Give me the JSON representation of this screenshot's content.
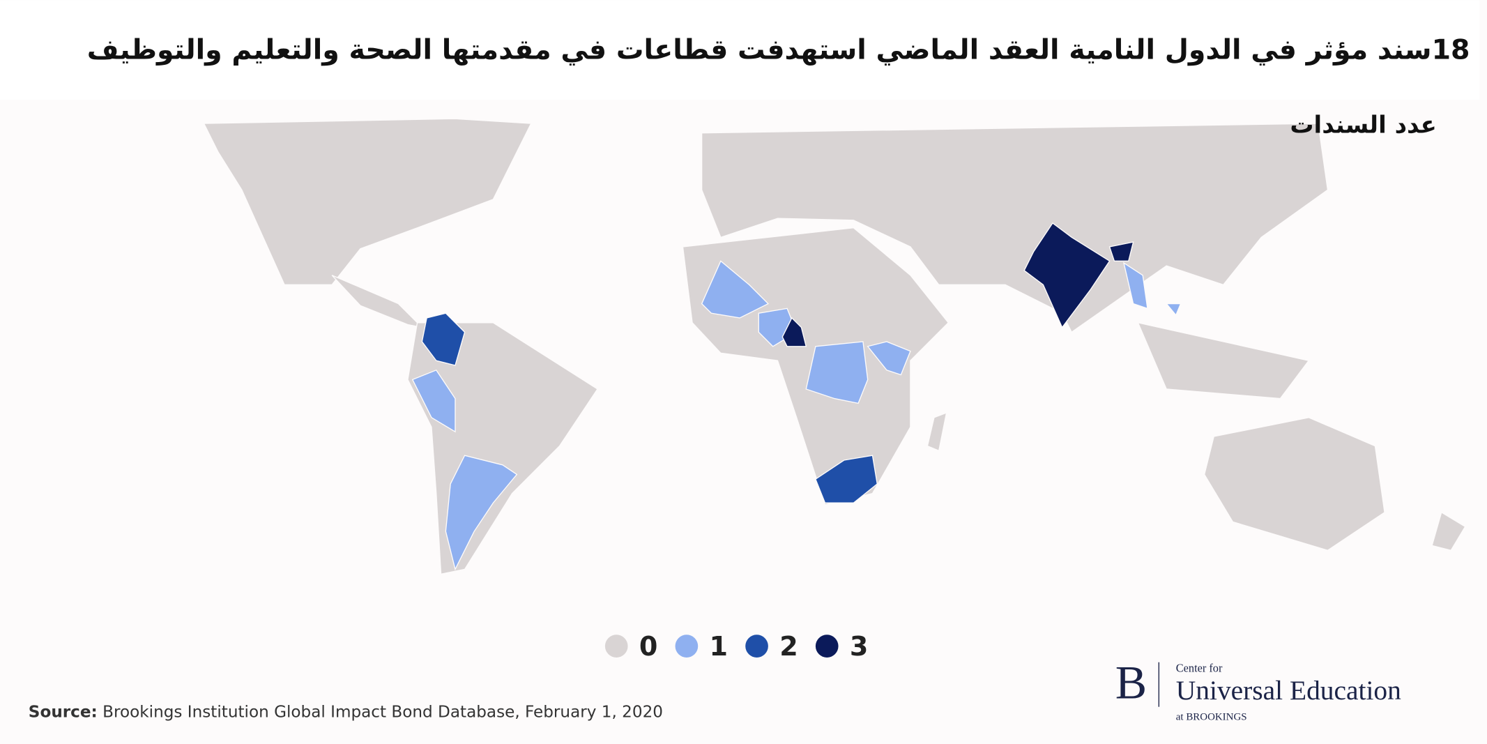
{
  "header": {
    "title": "18سند مؤثر في الدول النامية العقد الماضي استهدفت قطاعات في مقدمتها الصحة والتعليم والتوظيف",
    "subtitle": "عدد السندات"
  },
  "legend": {
    "values": [
      0,
      1,
      2,
      3
    ],
    "colors": [
      "#d9d4d4",
      "#8fb0f0",
      "#1f4fa8",
      "#0b1a5a"
    ]
  },
  "source": {
    "label": "Source:",
    "text": "Brookings Institution Global Impact Bond Database, February 1, 2020"
  },
  "logo": {
    "letter": "B",
    "line1": "Center for",
    "line2": "Universal Education",
    "line3": "at BROOKINGS"
  }
}
